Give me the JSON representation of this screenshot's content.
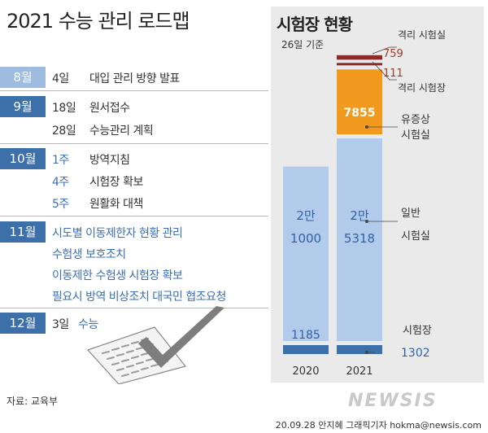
{
  "header": {
    "title": "2021 수능 관리 로드맵"
  },
  "roadmap": [
    {
      "month": "8월",
      "items": [
        {
          "day": "4일",
          "text": "대입 관리 방향 발표"
        }
      ]
    },
    {
      "month": "9월",
      "items": [
        {
          "day": "18일",
          "text": "원서접수"
        },
        {
          "day": "28일",
          "text": "수능관리 계획"
        }
      ]
    },
    {
      "month": "10월",
      "items": [
        {
          "day": "1주",
          "text": "방역지침"
        },
        {
          "day": "4주",
          "text": "시험장 확보"
        },
        {
          "day": "5주",
          "text": "원활화 대책"
        }
      ]
    },
    {
      "month": "11월",
      "items": [
        {
          "text": "시도별 이동제한자 현황 관리"
        },
        {
          "text": "수험생 보호조치"
        },
        {
          "text": "이동제한 수험생 시험장 확보"
        },
        {
          "text": "필요시 방역 비상조치 대국민 협조요청"
        }
      ]
    },
    {
      "month": "12월",
      "items": [
        {
          "day": "3일",
          "text": "수능"
        }
      ]
    }
  ],
  "chart_data": {
    "type": "bar",
    "title": "시험장 현황",
    "subtitle": "26일 기준",
    "categories": [
      "2020",
      "2021"
    ],
    "series": [
      {
        "name": "시험장",
        "values": [
          1185,
          1302
        ]
      },
      {
        "name": "일반 시험실",
        "values": [
          21000,
          25318
        ]
      },
      {
        "name": "유증상 시험실",
        "values": [
          0,
          7855
        ]
      },
      {
        "name": "격리 시험장",
        "values": [
          0,
          111
        ]
      },
      {
        "name": "격리 시험실",
        "values": [
          0,
          759
        ]
      }
    ],
    "labels": {
      "gen_2020": [
        "2만",
        "1000"
      ],
      "gen_2021": [
        "2만",
        "5318"
      ],
      "venue_2020": "1185",
      "venue_2021": "1302",
      "sym_2021": "7855",
      "iso_venue_2021": "111",
      "iso_room_2021": "759"
    },
    "annotations": {
      "iso_room": "격리 시험실",
      "iso_venue": "격리 시험장",
      "sym_room": [
        "유증상",
        "시험실"
      ],
      "gen_room": [
        "일반",
        "시험실"
      ],
      "venue": "시험장"
    }
  },
  "footer": {
    "source": "자료: 교육부",
    "logo": "NEWSIS",
    "credit": "20.09.28 안지혜 그래픽기자 hokma@newsis.com"
  },
  "colors": {
    "light_bar": "#b3cbea",
    "dark_bar": "#3d6fa8",
    "orange": "#f29a1d",
    "dark_red": "#8b2c2a",
    "label_red": "#a23a2c",
    "label_blue": "#2f62a8"
  }
}
